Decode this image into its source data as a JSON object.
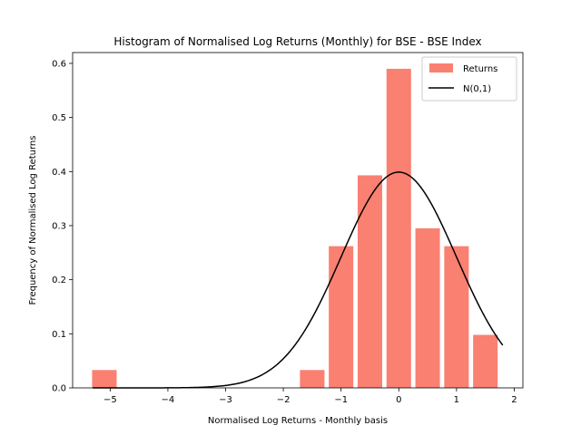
{
  "chart_data": {
    "type": "bar",
    "title": "Histogram of Normalised Log Returns (Monthly) for BSE - BSE Index",
    "xlabel": "Normalised Log Returns - Monthly basis",
    "ylabel": "Frequency of Normalised Log Returns",
    "xlim": [
      -5.65,
      2.15
    ],
    "ylim": [
      0,
      0.62
    ],
    "x_ticks": [
      -5,
      -4,
      -3,
      -2,
      -1,
      0,
      1,
      2
    ],
    "x_tick_labels": [
      "−5",
      "−4",
      "−3",
      "−2",
      "−1",
      "0",
      "1",
      "2"
    ],
    "y_ticks": [
      0.0,
      0.1,
      0.2,
      0.3,
      0.4,
      0.5,
      0.6
    ],
    "y_tick_labels": [
      "0.0",
      "0.1",
      "0.2",
      "0.3",
      "0.4",
      "0.5",
      "0.6"
    ],
    "grid": false,
    "legend": "top-right",
    "legend_entries": [
      {
        "label": "Returns",
        "kind": "bar"
      },
      {
        "label": "N(0,1)",
        "kind": "line"
      }
    ],
    "bar_color": "#fa8072",
    "line_color": "#000000",
    "bin_width": 0.5,
    "bars_x": [
      -5.1,
      -1.5,
      -1.0,
      -0.5,
      0.0,
      0.5,
      1.0,
      1.5
    ],
    "bars_y": [
      0.033,
      0.033,
      0.262,
      0.393,
      0.59,
      0.295,
      0.262,
      0.098
    ],
    "curve": {
      "label": "N(0,1)",
      "mean": 0,
      "std": 1,
      "x_range": [
        -5.3,
        1.8
      ]
    }
  }
}
